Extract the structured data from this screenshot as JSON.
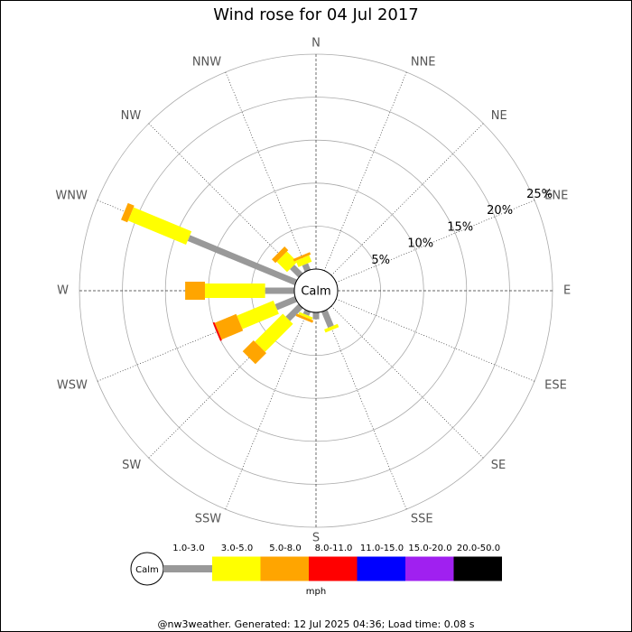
{
  "chart_data": {
    "type": "wind_rose",
    "title": "Wind rose for 04 Jul 2017",
    "directions": [
      "N",
      "NNE",
      "NE",
      "ENE",
      "E",
      "ESE",
      "SE",
      "SSE",
      "S",
      "SSW",
      "SW",
      "WSW",
      "W",
      "WNW",
      "NW",
      "NNW"
    ],
    "center_label": "Calm",
    "rlim": [
      0,
      25
    ],
    "rticks": [
      {
        "value": 5,
        "label": "5%"
      },
      {
        "value": 10,
        "label": "10%"
      },
      {
        "value": 15,
        "label": "15%"
      },
      {
        "value": 20,
        "label": "20%"
      },
      {
        "value": 25,
        "label": "25%"
      }
    ],
    "series": [
      {
        "name": "1.0-3.0",
        "color": "#999999",
        "values": [
          0,
          0,
          0,
          0,
          0,
          0,
          0,
          2.0,
          0.8,
          0.5,
          2.1,
          2.5,
          3.4,
          13.5,
          1.4,
          0.8
        ]
      },
      {
        "name": "3.0-5.0",
        "color": "#ffff00",
        "values": [
          0,
          0,
          0,
          0,
          0,
          0,
          0,
          0.4,
          0,
          0.3,
          4.6,
          4.6,
          7.0,
          7.3,
          1.7,
          0.8
        ]
      },
      {
        "name": "5.0-8.0",
        "color": "#ffa500",
        "values": [
          0,
          0,
          0,
          0,
          0,
          0,
          0,
          0,
          0,
          0.3,
          1.8,
          2.7,
          2.3,
          0.8,
          0.6,
          0.3
        ]
      },
      {
        "name": "8.0-11.0",
        "color": "#ff0000",
        "values": [
          0,
          0,
          0,
          0,
          0,
          0,
          0,
          0,
          0,
          0,
          0,
          0.2,
          0,
          0,
          0,
          0
        ]
      },
      {
        "name": "11.0-15.0",
        "color": "#0000ff",
        "values": [
          0,
          0,
          0,
          0,
          0,
          0,
          0,
          0,
          0,
          0,
          0,
          0,
          0,
          0,
          0,
          0
        ]
      },
      {
        "name": "15.0-20.0",
        "color": "#a020f0",
        "values": [
          0,
          0,
          0,
          0,
          0,
          0,
          0,
          0,
          0,
          0,
          0,
          0,
          0,
          0,
          0,
          0
        ]
      },
      {
        "name": "20.0-50.0",
        "color": "#000000",
        "values": [
          0,
          0,
          0,
          0,
          0,
          0,
          0,
          0,
          0,
          0,
          0,
          0,
          0,
          0,
          0,
          0
        ]
      }
    ],
    "legend_unit": "mph",
    "footer": "@nw3weather. Generated: 12 Jul 2025 04:36; Load time: 0.08 s"
  }
}
